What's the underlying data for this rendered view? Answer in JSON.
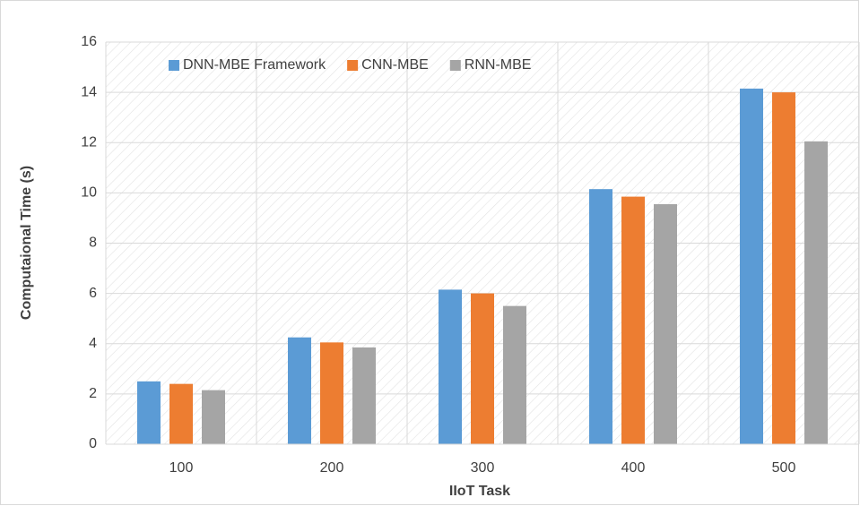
{
  "chart_data": {
    "type": "bar",
    "xlabel": "IIoT Task",
    "ylabel": "Computaional Time (s)",
    "categories": [
      "100",
      "200",
      "300",
      "400",
      "500"
    ],
    "series": [
      {
        "name": "DNN-MBE Framework",
        "color": "#5b9bd5",
        "values": [
          2.5,
          4.25,
          6.15,
          10.15,
          14.15
        ]
      },
      {
        "name": "CNN-MBE",
        "color": "#ed7d31",
        "values": [
          2.4,
          4.05,
          6.0,
          9.85,
          14.0
        ]
      },
      {
        "name": "RNN-MBE",
        "color": "#a5a5a5",
        "values": [
          2.15,
          3.85,
          5.5,
          9.55,
          12.05
        ]
      }
    ],
    "ylim": [
      0,
      16
    ],
    "yticks": [
      0,
      2,
      4,
      6,
      8,
      10,
      12,
      14,
      16
    ],
    "grid": true,
    "legend": "top-left"
  }
}
